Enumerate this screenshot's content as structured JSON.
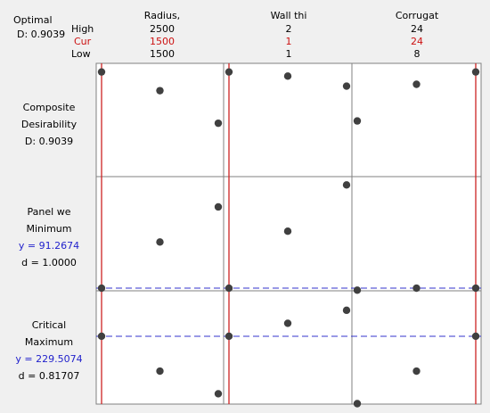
{
  "header": {
    "optimal_label": "Optimal",
    "d_label": "D: 0.9039",
    "row_labels": {
      "high": "High",
      "cur": "Cur",
      "low": "Low"
    },
    "factors": [
      {
        "name": "Radius,",
        "high": "2500",
        "cur": "1500",
        "low": "1500"
      },
      {
        "name": "Wall thi",
        "high": "2",
        "cur": "1",
        "low": "1"
      },
      {
        "name": "Corrugat",
        "high": "24",
        "cur": "24",
        "low": "8"
      }
    ]
  },
  "rows": [
    {
      "lines": [
        "Composite",
        "Desirability",
        "D: 0.9039"
      ],
      "blue": []
    },
    {
      "lines": [
        "Panel we",
        "Minimum",
        "y = 91.2674",
        "d = 1.0000"
      ],
      "blue": [
        2
      ]
    },
    {
      "lines": [
        "Critical",
        "Maximum",
        "y = 229.5074",
        "d = 0.81707"
      ],
      "blue": [
        2
      ]
    }
  ],
  "colors": {
    "current_line": "#cc2222",
    "reference_line": "#3333cc",
    "point": "#404040",
    "grid": "#808080",
    "panel": "#ffffff"
  },
  "chart_data": {
    "type": "scatter",
    "description": "Response optimizer plot",
    "factors": [
      {
        "name": "Radius,",
        "levels": [
          1500,
          2000,
          2500
        ],
        "current": 1500
      },
      {
        "name": "Wall thi",
        "levels": [
          1,
          1.5,
          2
        ],
        "current": 1
      },
      {
        "name": "Corrugat",
        "levels": [
          8,
          16,
          24
        ],
        "current": 24
      }
    ],
    "responses": [
      {
        "name": "Composite Desirability",
        "ylim": [
          0.83,
          0.91
        ],
        "reference": null,
        "points": [
          [
            0.9039,
            0.8907,
            0.8677
          ],
          [
            0.9039,
            0.901,
            0.8939
          ],
          [
            0.8693,
            0.8952,
            0.9039
          ]
        ]
      },
      {
        "name": "Panel we",
        "ylim": [
          90,
          145
        ],
        "reference": 91.2674,
        "points": [
          [
            91.2674,
            113.5,
            130.4
          ],
          [
            91.2674,
            118.7,
            141.0
          ],
          [
            90.3,
            91.2674,
            91.2674
          ]
        ]
      },
      {
        "name": "Critical",
        "ylim": [
          90,
          323
        ],
        "reference": 229.5074,
        "points": [
          [
            229.5074,
            157.8,
            111.2
          ],
          [
            229.5074,
            256.2,
            282.9
          ],
          [
            90.9,
            157.8,
            229.5074
          ]
        ]
      }
    ]
  }
}
